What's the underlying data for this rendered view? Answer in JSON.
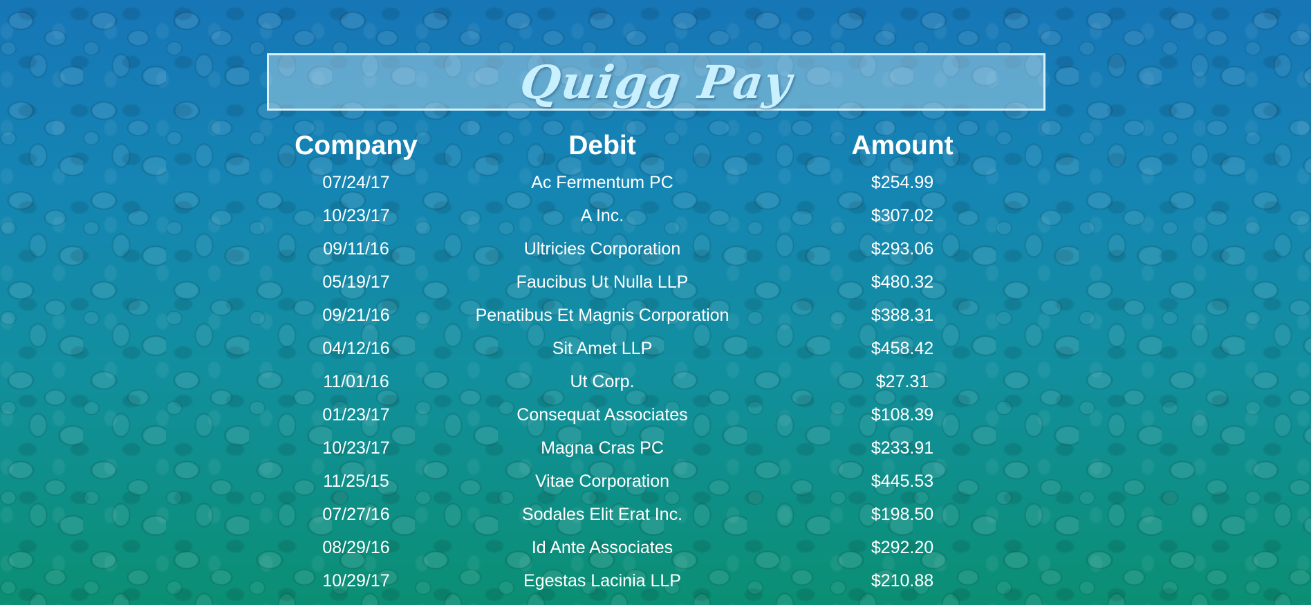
{
  "app": {
    "title": "Quigg Pay"
  },
  "colors": {
    "background_top": "#1676b6",
    "background_bottom": "#0b8f73",
    "title_text": "#c9f0ff",
    "title_border": "#d7f0fb",
    "table_text": "#ffffff"
  },
  "table": {
    "headers": [
      "Company",
      "Debit",
      "Amount"
    ],
    "rows": [
      [
        "07/24/17",
        "Ac Fermentum PC",
        "$254.99"
      ],
      [
        "10/23/17",
        "A Inc.",
        "$307.02"
      ],
      [
        "09/11/16",
        "Ultricies Corporation",
        "$293.06"
      ],
      [
        "05/19/17",
        "Faucibus Ut Nulla LLP",
        "$480.32"
      ],
      [
        "09/21/16",
        "Penatibus Et Magnis Corporation",
        "$388.31"
      ],
      [
        "04/12/16",
        "Sit Amet LLP",
        "$458.42"
      ],
      [
        "11/01/16",
        "Ut Corp.",
        "$27.31"
      ],
      [
        "01/23/17",
        "Consequat Associates",
        "$108.39"
      ],
      [
        "10/23/17",
        "Magna Cras PC",
        "$233.91"
      ],
      [
        "11/25/15",
        "Vitae Corporation",
        "$445.53"
      ],
      [
        "07/27/16",
        "Sodales Elit Erat Inc.",
        "$198.50"
      ],
      [
        "08/29/16",
        "Id Ante Associates",
        "$292.20"
      ],
      [
        "10/29/17",
        "Egestas Lacinia LLP",
        "$210.88"
      ]
    ]
  }
}
